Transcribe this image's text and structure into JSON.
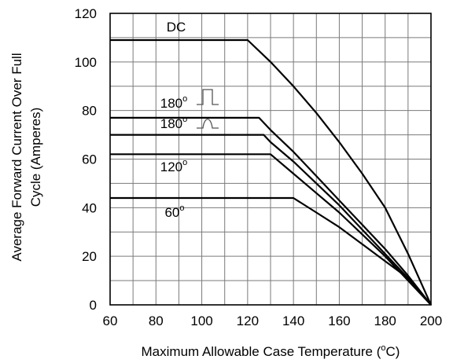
{
  "chart_data": {
    "type": "line",
    "xlabel": "Maximum Allowable Case Temperature (",
    "xlabel_sup": "o",
    "xlabel_suffix": "C)",
    "ylabel_line1": "Average Forward Current Over Full",
    "ylabel_line2": "Cycle (Amperes)",
    "xlim": [
      60,
      200
    ],
    "ylim": [
      0,
      120
    ],
    "x_ticks": [
      "60",
      "80",
      "100",
      "120",
      "140",
      "160",
      "180",
      "200"
    ],
    "y_ticks": [
      "0",
      "20",
      "40",
      "60",
      "80",
      "100",
      "120"
    ],
    "x_minor_step": 10,
    "y_minor_step": 10,
    "grid": true,
    "series": [
      {
        "name": "DC",
        "sup": "",
        "waveform": "none",
        "x": [
          60,
          120,
          130,
          140,
          150,
          160,
          170,
          180,
          190,
          200
        ],
        "y": [
          109,
          109,
          100,
          90,
          79,
          67,
          54,
          40,
          21,
          0
        ]
      },
      {
        "name": "180",
        "sup": "o",
        "waveform": "square",
        "x": [
          60,
          125,
          130,
          140,
          150,
          160,
          170,
          180,
          190,
          200
        ],
        "y": [
          77,
          77,
          72,
          63,
          53,
          43,
          33,
          23,
          12,
          0
        ]
      },
      {
        "name": "180",
        "sup": "o",
        "waveform": "sine",
        "x": [
          60,
          127,
          130,
          140,
          150,
          160,
          170,
          180,
          190,
          200
        ],
        "y": [
          70,
          70,
          67,
          59,
          50,
          41,
          31,
          21,
          11,
          0
        ]
      },
      {
        "name": "120",
        "sup": "o",
        "waveform": "none",
        "x": [
          60,
          130,
          140,
          150,
          160,
          170,
          180,
          190,
          200
        ],
        "y": [
          62,
          62,
          54,
          46,
          38,
          29,
          20,
          10,
          0
        ]
      },
      {
        "name": "60",
        "sup": "o",
        "waveform": "none",
        "x": [
          60,
          140,
          150,
          160,
          170,
          180,
          190,
          200
        ],
        "y": [
          44,
          44,
          38,
          32,
          25,
          18,
          11,
          0
        ]
      }
    ]
  }
}
